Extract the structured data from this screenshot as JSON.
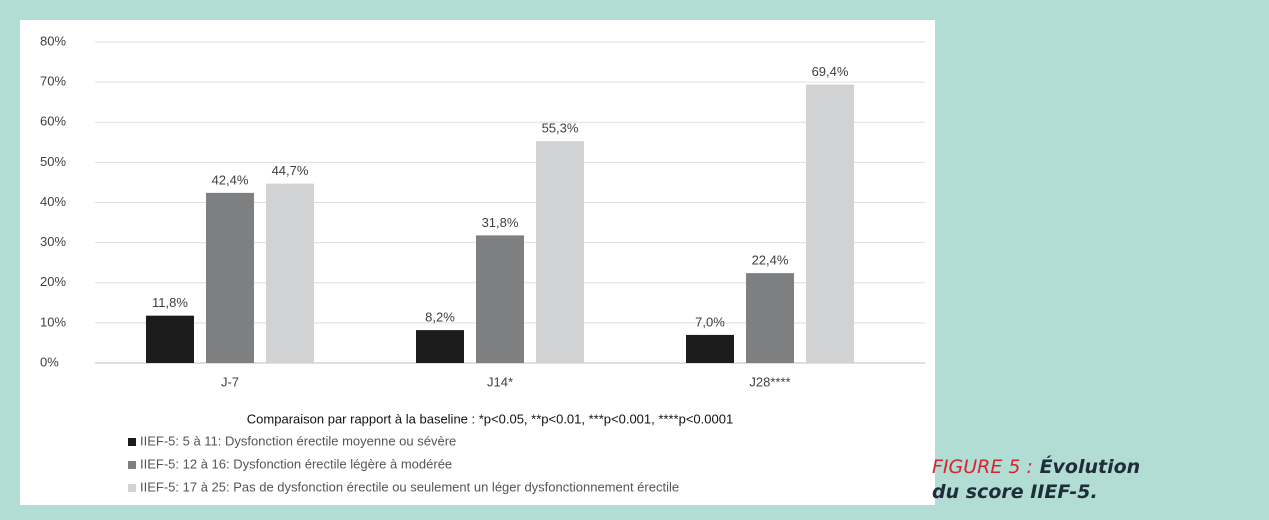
{
  "chart_data": {
    "type": "bar",
    "categories": [
      "J-7",
      "J14*",
      "J28****"
    ],
    "series": [
      {
        "name": "IIEF-5: 5 à 11: Dysfonction érectile moyenne ou sévère",
        "color": "#1c1c1c",
        "values": [
          11.8,
          8.2,
          7.0
        ],
        "value_labels": [
          "11,8%",
          "8,2%",
          "7,0%"
        ]
      },
      {
        "name": "IIEF-5: 12 à 16: Dysfonction érectile légère à modérée",
        "color": "#7e7f81",
        "values": [
          42.4,
          31.8,
          22.4
        ],
        "value_labels": [
          "42,4%",
          "31,8%",
          "22,4%"
        ]
      },
      {
        "name": "IIEF-5: 17 à 25: Pas de dysfonction érectile ou seulement un léger dysfonctionnement érectile",
        "color": "#d1d2d4",
        "values": [
          44.7,
          55.3,
          69.4
        ],
        "value_labels": [
          "44,7%",
          "55,3%",
          "69,4%"
        ]
      }
    ],
    "ylim": [
      0,
      80
    ],
    "yticks": [
      {
        "value": 0,
        "label": "0%"
      },
      {
        "value": 10,
        "label": "10%"
      },
      {
        "value": 20,
        "label": "20%"
      },
      {
        "value": 30,
        "label": "30%"
      },
      {
        "value": 40,
        "label": "40%"
      },
      {
        "value": 50,
        "label": "50%"
      },
      {
        "value": 60,
        "label": "60%"
      },
      {
        "value": 70,
        "label": "70%"
      },
      {
        "value": 80,
        "label": "80%"
      }
    ],
    "grid": true,
    "note": "Comparaison par rapport à la baseline : *p<0.05, **p<0.01, ***p<0.001, ****p<0.0001"
  },
  "caption": {
    "label": "FIGURE 5 :",
    "lines": [
      "Évolution",
      "du score IIEF-5."
    ]
  }
}
